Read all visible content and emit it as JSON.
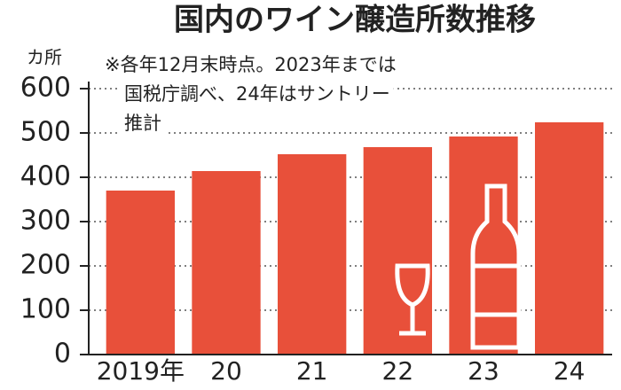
{
  "chart_data": {
    "type": "bar",
    "title": "国内のワイン醸造所数推移",
    "y_label": "カ所",
    "note": [
      "※各年12月末時点。2023年までは",
      "国税庁調べ、24年はサントリー",
      "推計"
    ],
    "categories": [
      "2019年",
      "20",
      "21",
      "22",
      "23",
      "24"
    ],
    "values": [
      370,
      414,
      452,
      468,
      492,
      524
    ],
    "color": "#e8503a",
    "ylim": [
      0,
      600
    ],
    "yticks": [
      0,
      100,
      200,
      300,
      400,
      500,
      600
    ],
    "grid": true
  }
}
